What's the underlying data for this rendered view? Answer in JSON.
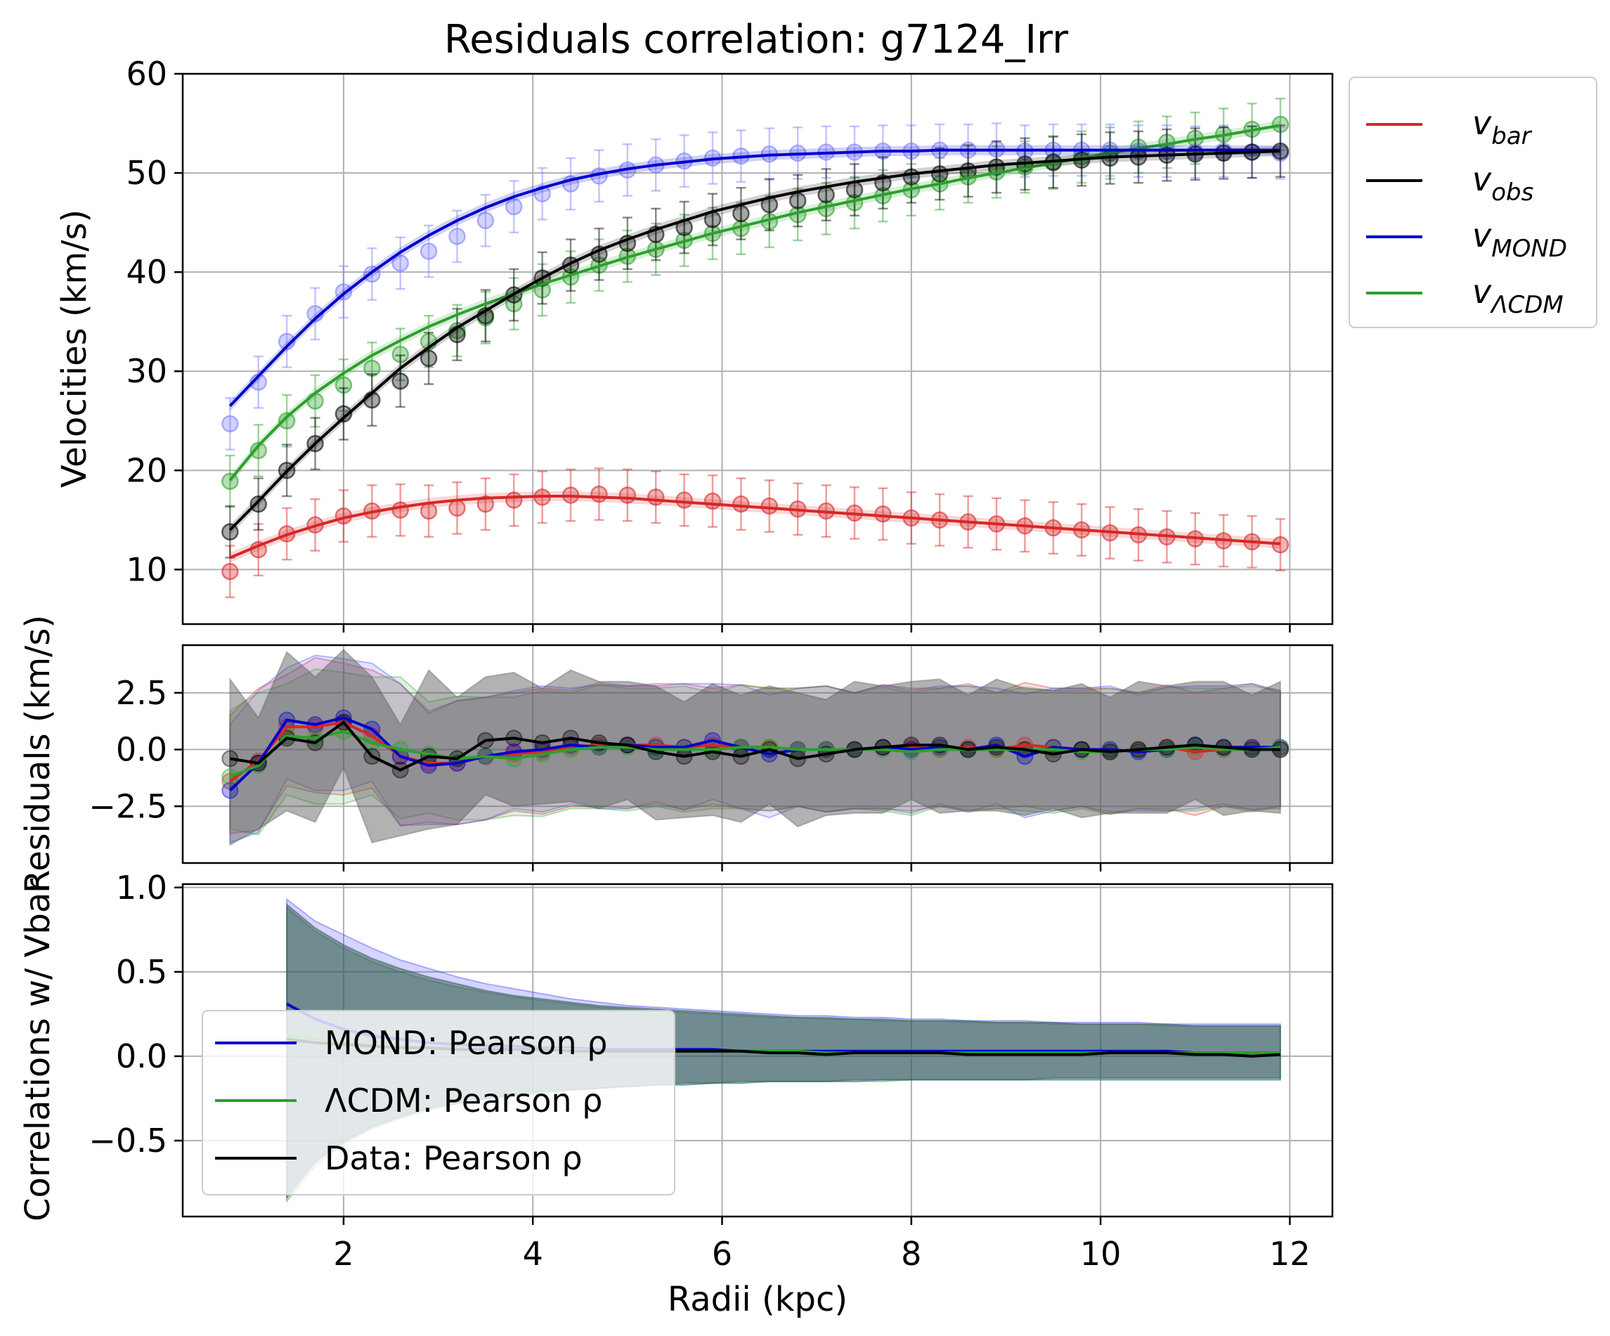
{
  "title": "Residuals correlation: g7124_Irr",
  "colors": {
    "bar": "#d62728",
    "obs": "#000000",
    "mond": "#0000cc",
    "lcdm": "#2ca02c",
    "mond_light": "#7f7fff",
    "mond_data": "#3333cc",
    "grid": "#b0b0b0"
  },
  "x_axis": {
    "label": "Radii (kpc)",
    "ticks": [
      2,
      4,
      6,
      8,
      10,
      12
    ],
    "tick_labels": [
      "2",
      "4",
      "6",
      "8",
      "10",
      "12"
    ],
    "range": [
      0.3,
      12.45
    ]
  },
  "panels": {
    "velocities": {
      "ylabel": "Velocities (km/s)",
      "ylim": [
        4.5,
        60
      ],
      "yticks": [
        10,
        20,
        30,
        40,
        50,
        60
      ],
      "ytick_labels": [
        "10",
        "20",
        "30",
        "40",
        "50",
        "60"
      ],
      "legend": [
        {
          "key": "bar",
          "label_main": "v",
          "label_sub": "bar"
        },
        {
          "key": "obs",
          "label_main": "v",
          "label_sub": "obs"
        },
        {
          "key": "mond",
          "label_main": "v",
          "label_sub": "MOND"
        },
        {
          "key": "lcdm",
          "label_main": "v",
          "label_sub": "ΛCDM"
        }
      ]
    },
    "residuals": {
      "ylabel": "Residuals (km/s)",
      "ylim": [
        -5.0,
        4.6
      ],
      "yticks": [
        -2.5,
        0.0,
        2.5
      ],
      "ytick_labels": [
        "−2.5",
        "0.0",
        "2.5"
      ]
    },
    "correlations": {
      "ylabel": "Correlations w/ Vbar",
      "ylim": [
        -0.95,
        1.02
      ],
      "yticks": [
        -0.5,
        0.0,
        0.5,
        1.0
      ],
      "ytick_labels": [
        "−0.5",
        "0.0",
        "0.5",
        "1.0"
      ],
      "legend": [
        {
          "key": "mond",
          "label": "MOND: Pearson ρ"
        },
        {
          "key": "lcdm",
          "label": "ΛCDM: Pearson ρ"
        },
        {
          "key": "obs",
          "label": "Data: Pearson ρ"
        }
      ]
    }
  },
  "chart_data": [
    {
      "type": "line",
      "title": "Residuals correlation: g7124_Irr",
      "xlabel": "Radii (kpc)",
      "ylabel": "Velocities (km/s)",
      "ylim": [
        4.5,
        60
      ],
      "grid": true,
      "legend_position": "outside-right",
      "x": [
        0.8,
        1.1,
        1.4,
        1.7,
        2.0,
        2.3,
        2.6,
        2.9,
        3.2,
        3.5,
        3.8,
        4.1,
        4.4,
        4.7,
        5.0,
        5.3,
        5.6,
        5.9,
        6.2,
        6.5,
        6.8,
        7.1,
        7.4,
        7.7,
        8.0,
        8.3,
        8.6,
        8.9,
        9.2,
        9.5,
        9.8,
        10.1,
        10.4,
        10.7,
        11.0,
        11.3,
        11.6,
        11.9
      ],
      "series": [
        {
          "name": "v_bar",
          "error": 2.6,
          "values": [
            11.2,
            12.4,
            13.5,
            14.4,
            15.2,
            15.8,
            16.3,
            16.7,
            17.0,
            17.2,
            17.3,
            17.4,
            17.4,
            17.3,
            17.2,
            17.0,
            16.8,
            16.6,
            16.4,
            16.2,
            16.0,
            15.8,
            15.6,
            15.4,
            15.2,
            15.0,
            14.8,
            14.6,
            14.4,
            14.2,
            14.0,
            13.8,
            13.6,
            13.4,
            13.2,
            13.0,
            12.8,
            12.6
          ],
          "points": [
            9.8,
            12.0,
            13.6,
            14.5,
            15.4,
            15.9,
            16.0,
            15.9,
            16.2,
            16.6,
            17.0,
            17.3,
            17.5,
            17.6,
            17.5,
            17.3,
            17.0,
            16.9,
            16.6,
            16.4,
            16.1,
            15.9,
            15.7,
            15.6,
            15.2,
            15.0,
            14.8,
            14.6,
            14.4,
            14.2,
            14.0,
            13.7,
            13.5,
            13.3,
            13.1,
            12.9,
            12.8,
            12.5
          ]
        },
        {
          "name": "v_obs",
          "error": 2.6,
          "values": [
            14.0,
            16.9,
            19.9,
            22.7,
            25.3,
            27.8,
            30.3,
            32.4,
            34.4,
            36.1,
            37.8,
            39.4,
            40.9,
            42.2,
            43.3,
            44.3,
            45.2,
            46.1,
            46.8,
            47.5,
            48.1,
            48.6,
            49.1,
            49.5,
            49.9,
            50.2,
            50.5,
            50.8,
            51.0,
            51.2,
            51.4,
            51.6,
            51.7,
            51.8,
            51.9,
            52.0,
            52.1,
            52.2
          ],
          "points": [
            13.8,
            16.6,
            20.0,
            22.7,
            25.7,
            27.1,
            29.0,
            31.3,
            33.7,
            35.6,
            37.7,
            39.4,
            40.7,
            41.8,
            42.9,
            43.8,
            44.5,
            45.3,
            45.9,
            46.8,
            47.2,
            47.8,
            48.3,
            49.0,
            49.6,
            49.9,
            50.2,
            50.6,
            50.9,
            51.1,
            51.3,
            51.5,
            51.6,
            51.8,
            51.9,
            52.0,
            52.1,
            52.2
          ]
        },
        {
          "name": "v_MOND",
          "error": 2.6,
          "values": [
            26.5,
            29.5,
            32.5,
            35.3,
            37.8,
            40.0,
            42.0,
            43.7,
            45.2,
            46.5,
            47.6,
            48.5,
            49.3,
            49.9,
            50.4,
            50.8,
            51.1,
            51.4,
            51.6,
            51.8,
            51.9,
            52.0,
            52.1,
            52.2,
            52.2,
            52.3,
            52.3,
            52.3,
            52.3,
            52.3,
            52.3,
            52.3,
            52.3,
            52.3,
            52.3,
            52.3,
            52.3,
            52.3
          ],
          "points": [
            24.7,
            28.9,
            33.0,
            35.8,
            38.0,
            39.8,
            40.9,
            42.1,
            43.6,
            45.2,
            46.6,
            47.9,
            48.9,
            49.7,
            50.3,
            50.8,
            51.2,
            51.5,
            51.7,
            51.9,
            52.0,
            52.1,
            52.1,
            52.2,
            52.2,
            52.3,
            52.3,
            52.4,
            52.2,
            52.3,
            52.3,
            52.3,
            52.2,
            52.2,
            52.1,
            52.2,
            52.1,
            52.0
          ]
        },
        {
          "name": "v_ΛCDM",
          "error": 2.6,
          "values": [
            19.0,
            22.5,
            25.4,
            27.8,
            29.8,
            31.6,
            33.1,
            34.5,
            35.7,
            36.8,
            37.8,
            38.8,
            39.7,
            40.6,
            41.5,
            42.3,
            43.1,
            43.9,
            44.6,
            45.3,
            46.0,
            46.6,
            47.2,
            47.8,
            48.4,
            48.9,
            49.5,
            50.0,
            50.5,
            51.0,
            51.5,
            52.0,
            52.5,
            52.9,
            53.4,
            53.8,
            54.3,
            54.8
          ],
          "points": [
            18.9,
            22.0,
            25.0,
            27.0,
            28.6,
            30.3,
            31.7,
            33.0,
            34.1,
            35.4,
            36.8,
            38.2,
            39.5,
            40.7,
            41.6,
            42.3,
            43.2,
            43.9,
            44.4,
            45.1,
            45.8,
            46.4,
            47.0,
            47.7,
            48.3,
            48.9,
            49.6,
            50.1,
            50.6,
            51.0,
            51.6,
            52.0,
            52.6,
            53.1,
            53.5,
            53.9,
            54.4,
            54.9
          ]
        }
      ]
    },
    {
      "type": "line",
      "ylabel": "Residuals (km/s)",
      "ylim": [
        -5.0,
        4.6
      ],
      "grid": true,
      "x": [
        0.8,
        1.1,
        1.4,
        1.7,
        2.0,
        2.3,
        2.6,
        2.9,
        3.2,
        3.5,
        3.8,
        4.1,
        4.4,
        4.7,
        5.0,
        5.3,
        5.6,
        5.9,
        6.2,
        6.5,
        6.8,
        7.1,
        7.4,
        7.7,
        8.0,
        8.3,
        8.6,
        8.9,
        9.2,
        9.5,
        9.8,
        10.1,
        10.4,
        10.7,
        11.0,
        11.3,
        11.6,
        11.9
      ],
      "series": [
        {
          "name": "bar",
          "values": [
            -1.4,
            -0.5,
            1.0,
            1.0,
            1.2,
            0.6,
            -0.3,
            -0.6,
            -0.6,
            -0.3,
            -0.2,
            -0.1,
            0.1,
            0.2,
            0.2,
            0.2,
            0.1,
            0.2,
            0.1,
            0.1,
            0.0,
            0.0,
            0.0,
            0.1,
            0.1,
            0.0,
            0.1,
            0.0,
            0.2,
            0.1,
            0.0,
            -0.1,
            0.0,
            0.1,
            -0.1,
            0.0,
            0.1,
            0.0
          ],
          "band": 2.6
        },
        {
          "name": "mond",
          "values": [
            -1.8,
            -0.6,
            1.3,
            1.1,
            1.4,
            0.9,
            -0.3,
            -0.7,
            -0.6,
            -0.3,
            -0.1,
            0.0,
            0.2,
            0.1,
            0.2,
            0.1,
            0.1,
            0.4,
            0.1,
            -0.2,
            0.0,
            0.0,
            0.0,
            0.1,
            0.0,
            0.1,
            0.0,
            0.2,
            -0.3,
            0.1,
            0.0,
            0.0,
            -0.1,
            0.0,
            0.2,
            0.1,
            0.1,
            0.1
          ],
          "band": 2.6
        },
        {
          "name": "lcdm",
          "values": [
            -1.2,
            -0.7,
            0.6,
            0.5,
            0.8,
            0.3,
            0.0,
            -0.2,
            -0.4,
            -0.3,
            -0.4,
            -0.2,
            0.0,
            0.1,
            0.1,
            0.0,
            0.0,
            0.0,
            0.1,
            0.1,
            0.0,
            0.0,
            0.0,
            0.0,
            -0.1,
            0.0,
            0.0,
            0.0,
            0.0,
            0.0,
            -0.1,
            -0.1,
            0.0,
            0.0,
            0.1,
            0.0,
            0.0,
            0.1
          ],
          "band": 2.6
        },
        {
          "name": "obs",
          "values": [
            -0.4,
            -0.6,
            0.5,
            0.3,
            1.2,
            -0.3,
            -0.9,
            -0.3,
            -0.4,
            0.4,
            0.5,
            0.3,
            0.5,
            0.3,
            0.2,
            -0.1,
            -0.3,
            -0.1,
            -0.3,
            0.0,
            -0.4,
            -0.2,
            0.0,
            0.1,
            0.2,
            0.2,
            0.0,
            0.1,
            0.0,
            -0.2,
            0.0,
            -0.1,
            0.0,
            0.1,
            0.2,
            0.1,
            0.0,
            0.0
          ],
          "band": 2.6
        }
      ]
    },
    {
      "type": "line",
      "xlabel": "Radii (kpc)",
      "ylabel": "Correlations w/ Vbar",
      "ylim": [
        -0.95,
        1.02
      ],
      "grid": true,
      "legend_position": "lower-left",
      "x": [
        1.4,
        1.7,
        2.0,
        2.3,
        2.6,
        2.9,
        3.2,
        3.5,
        3.8,
        4.1,
        4.4,
        4.7,
        5.0,
        5.3,
        5.6,
        5.9,
        6.2,
        6.5,
        6.8,
        7.1,
        7.4,
        7.7,
        8.0,
        8.3,
        8.6,
        8.9,
        9.2,
        9.5,
        9.8,
        10.1,
        10.4,
        10.7,
        11.0,
        11.3,
        11.6,
        11.9
      ],
      "series": [
        {
          "name": "MOND: Pearson ρ",
          "values": [
            0.31,
            0.22,
            0.16,
            0.12,
            0.1,
            0.08,
            0.07,
            0.06,
            0.06,
            0.05,
            0.05,
            0.04,
            0.04,
            0.04,
            0.04,
            0.04,
            0.03,
            0.03,
            0.03,
            0.03,
            0.03,
            0.03,
            0.03,
            0.03,
            0.03,
            0.03,
            0.03,
            0.03,
            0.03,
            0.03,
            0.03,
            0.03,
            0.02,
            0.02,
            0.02,
            0.02
          ],
          "upper": [
            0.93,
            0.8,
            0.72,
            0.64,
            0.57,
            0.52,
            0.47,
            0.43,
            0.4,
            0.37,
            0.34,
            0.32,
            0.3,
            0.29,
            0.28,
            0.27,
            0.26,
            0.25,
            0.24,
            0.24,
            0.23,
            0.23,
            0.22,
            0.22,
            0.21,
            0.21,
            0.21,
            0.2,
            0.2,
            0.2,
            0.2,
            0.19,
            0.19,
            0.19,
            0.19,
            0.19
          ],
          "lower": [
            -0.82,
            -0.62,
            -0.5,
            -0.42,
            -0.36,
            -0.31,
            -0.28,
            -0.25,
            -0.23,
            -0.21,
            -0.2,
            -0.19,
            -0.18,
            -0.17,
            -0.17,
            -0.16,
            -0.16,
            -0.15,
            -0.15,
            -0.15,
            -0.15,
            -0.14,
            -0.14,
            -0.14,
            -0.14,
            -0.14,
            -0.14,
            -0.14,
            -0.14,
            -0.14,
            -0.14,
            -0.14,
            -0.14,
            -0.14,
            -0.14,
            -0.14
          ]
        },
        {
          "name": "ΛCDM: Pearson ρ",
          "values": [
            0.12,
            0.1,
            0.08,
            0.07,
            0.06,
            0.05,
            0.05,
            0.04,
            0.04,
            0.04,
            0.04,
            0.03,
            0.03,
            0.03,
            0.03,
            0.03,
            0.03,
            0.03,
            0.03,
            0.02,
            0.02,
            0.02,
            0.02,
            0.02,
            0.02,
            0.02,
            0.02,
            0.02,
            0.02,
            0.02,
            0.02,
            0.02,
            0.02,
            0.02,
            0.02,
            0.02
          ],
          "upper": [
            0.88,
            0.74,
            0.64,
            0.56,
            0.5,
            0.45,
            0.41,
            0.38,
            0.35,
            0.33,
            0.31,
            0.29,
            0.28,
            0.27,
            0.26,
            0.25,
            0.24,
            0.23,
            0.23,
            0.22,
            0.22,
            0.21,
            0.21,
            0.21,
            0.2,
            0.2,
            0.2,
            0.19,
            0.19,
            0.19,
            0.19,
            0.18,
            0.18,
            0.18,
            0.18,
            0.18
          ],
          "lower": [
            -0.86,
            -0.65,
            -0.52,
            -0.43,
            -0.37,
            -0.32,
            -0.28,
            -0.26,
            -0.24,
            -0.22,
            -0.2,
            -0.19,
            -0.18,
            -0.17,
            -0.17,
            -0.16,
            -0.16,
            -0.15,
            -0.15,
            -0.15,
            -0.15,
            -0.15,
            -0.14,
            -0.14,
            -0.14,
            -0.14,
            -0.14,
            -0.14,
            -0.14,
            -0.14,
            -0.14,
            -0.14,
            -0.14,
            -0.14,
            -0.14,
            -0.14
          ]
        },
        {
          "name": "Data: Pearson ρ",
          "values": [
            0.1,
            0.08,
            0.07,
            0.06,
            0.05,
            0.05,
            0.04,
            0.04,
            0.04,
            0.04,
            0.03,
            0.03,
            0.03,
            0.03,
            0.03,
            0.03,
            0.03,
            0.02,
            0.02,
            0.01,
            0.02,
            0.02,
            0.02,
            0.02,
            0.01,
            0.01,
            0.01,
            0.01,
            0.01,
            0.02,
            0.02,
            0.02,
            0.01,
            0.01,
            0.0,
            0.01
          ],
          "upper": [
            0.9,
            0.76,
            0.66,
            0.58,
            0.52,
            0.47,
            0.43,
            0.39,
            0.36,
            0.34,
            0.32,
            0.3,
            0.29,
            0.28,
            0.27,
            0.26,
            0.25,
            0.24,
            0.23,
            0.23,
            0.22,
            0.22,
            0.21,
            0.21,
            0.21,
            0.2,
            0.2,
            0.2,
            0.19,
            0.19,
            0.19,
            0.19,
            0.18,
            0.18,
            0.18,
            0.18
          ],
          "lower": [
            -0.84,
            -0.63,
            -0.51,
            -0.42,
            -0.36,
            -0.31,
            -0.28,
            -0.25,
            -0.23,
            -0.21,
            -0.2,
            -0.19,
            -0.18,
            -0.17,
            -0.16,
            -0.16,
            -0.15,
            -0.15,
            -0.15,
            -0.15,
            -0.14,
            -0.14,
            -0.14,
            -0.14,
            -0.14,
            -0.14,
            -0.14,
            -0.13,
            -0.13,
            -0.13,
            -0.13,
            -0.13,
            -0.13,
            -0.13,
            -0.13,
            -0.13
          ]
        }
      ]
    }
  ]
}
